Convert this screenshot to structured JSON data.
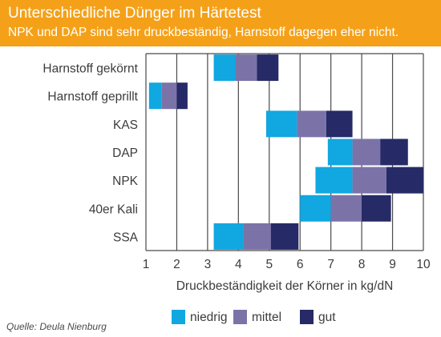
{
  "header": {
    "title": "Unterschiedliche Dünger im Härtetest",
    "subtitle": "NPK und DAP sind sehr druckbeständig, Harnstoff dagegen eher nicht."
  },
  "source": "Quelle: Deula Nienburg",
  "colors": {
    "header_bg": "#f4a119",
    "niedrig": "#11a7e0",
    "mittel": "#7b73a8",
    "gut": "#262a66"
  },
  "chart_data": {
    "type": "bar",
    "orientation": "horizontal-stacked-range",
    "xlabel": "Druckbeständigkeit der Körner in kg/dN",
    "xlim": [
      1,
      10
    ],
    "xticks": [
      "1",
      "2",
      "3",
      "4",
      "5",
      "6",
      "7",
      "8",
      "9",
      "10"
    ],
    "grid": "vertical",
    "legend_position": "bottom",
    "legend": [
      {
        "key": "niedrig",
        "label": "niedrig"
      },
      {
        "key": "mittel",
        "label": "mittel"
      },
      {
        "key": "gut",
        "label": "gut"
      }
    ],
    "categories": [
      "Harnstoff gekörnt",
      "Harnstoff geprillt",
      "KAS",
      "DAP",
      "NPK",
      "40er Kali",
      "SSA"
    ],
    "series": [
      {
        "name": "niedrig",
        "start": [
          3.2,
          1.1,
          4.9,
          6.9,
          6.5,
          6.0,
          3.2
        ],
        "end": [
          3.9,
          1.5,
          5.9,
          7.7,
          7.7,
          7.0,
          4.15
        ]
      },
      {
        "name": "mittel",
        "start": [
          3.9,
          1.5,
          5.9,
          7.7,
          7.7,
          7.0,
          4.15
        ],
        "end": [
          4.6,
          2.0,
          6.85,
          8.6,
          8.8,
          8.0,
          5.05
        ]
      },
      {
        "name": "gut",
        "start": [
          4.6,
          2.0,
          6.85,
          8.6,
          8.8,
          8.0,
          5.05
        ],
        "end": [
          5.3,
          2.35,
          7.7,
          9.5,
          10.0,
          8.95,
          5.95
        ]
      }
    ]
  }
}
